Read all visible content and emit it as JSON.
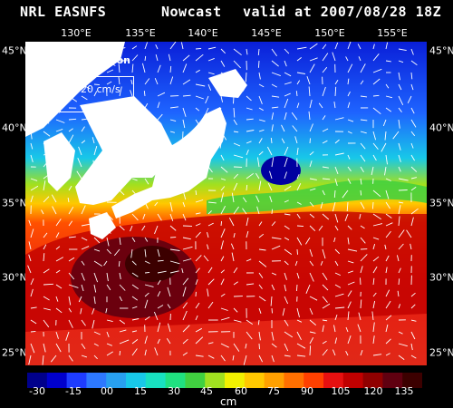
{
  "header": {
    "left": "NRL EASNFS",
    "middle": "Nowcast",
    "right": "valid at 2007/08/28 18Z"
  },
  "axes": {
    "longitude_labels": [
      "130°E",
      "135°E",
      "140°E",
      "145°E",
      "150°E",
      "155°E"
    ],
    "latitude_labels": [
      "45°N",
      "40°N",
      "35°N",
      "30°N",
      "25°N"
    ]
  },
  "legend": {
    "title": "Surface Elevation",
    "reference_vector": "20 cm/s",
    "arrow_icon": "right-arrow-icon"
  },
  "colorbar": {
    "ticks": [
      "-30",
      "-15",
      "00",
      "15",
      "30",
      "45",
      "60",
      "75",
      "90",
      "105",
      "120",
      "135"
    ],
    "units": "cm",
    "colors": [
      "#00008b",
      "#0000cd",
      "#1e3cff",
      "#2d78ff",
      "#28a0f0",
      "#18c8e8",
      "#18e0c0",
      "#20e080",
      "#40d040",
      "#a0e020",
      "#f0f000",
      "#ffc800",
      "#ffa000",
      "#ff7000",
      "#ff4000",
      "#e61010",
      "#c00000",
      "#900000",
      "#600010",
      "#3c0000"
    ]
  },
  "colors": {
    "background": "#000000",
    "land": "#ffffff",
    "vectors": "#ffffff"
  }
}
